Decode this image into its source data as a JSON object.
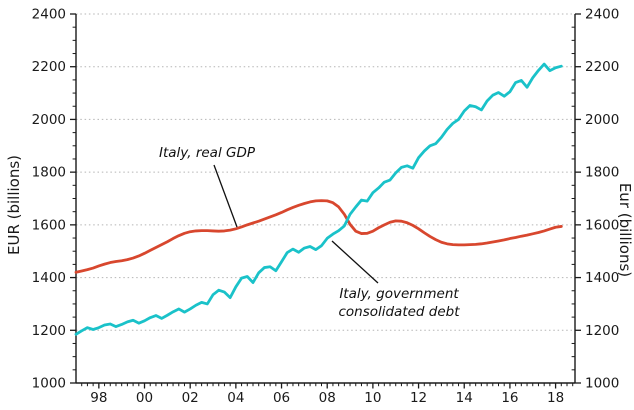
{
  "figure": {
    "left_axis_title": "EUR (billions)",
    "right_axis_title": "Eur (billions)"
  },
  "chart_data": {
    "type": "line",
    "title": "",
    "xlabel": "",
    "ylabel_left": "EUR (billions)",
    "ylabel_right": "Eur (billions)",
    "x_unit": "year, quarterly observations",
    "x_start": 1997.0,
    "x_step": 0.25,
    "xlim": [
      1997.0,
      2018.85
    ],
    "ylim": [
      1000,
      2400
    ],
    "grid": "horizontal, dotted, at major y ticks",
    "legend_position": "none (in-plot annotations)",
    "x_major_ticks": [
      1998,
      2000,
      2002,
      2004,
      2006,
      2008,
      2010,
      2012,
      2014,
      2016,
      2018
    ],
    "x_tick_labels": [
      "98",
      "00",
      "02",
      "04",
      "06",
      "08",
      "10",
      "12",
      "14",
      "16",
      "18"
    ],
    "y_major_ticks": [
      1000,
      1200,
      1400,
      1600,
      1800,
      2000,
      2200,
      2400
    ],
    "y_tick_labels": [
      "1000",
      "1200",
      "1400",
      "1600",
      "1800",
      "2000",
      "2200",
      "2400"
    ],
    "y_minor_tick_step": 50,
    "series": [
      {
        "name": "Italy, real GDP",
        "color": "#d8472e",
        "values": [
          1420,
          1425,
          1430,
          1436,
          1444,
          1451,
          1457,
          1461,
          1464,
          1468,
          1474,
          1482,
          1492,
          1503,
          1514,
          1525,
          1536,
          1548,
          1559,
          1568,
          1574,
          1577,
          1578,
          1578,
          1577,
          1576,
          1577,
          1580,
          1585,
          1592,
          1600,
          1607,
          1614,
          1622,
          1630,
          1638,
          1647,
          1657,
          1666,
          1674,
          1681,
          1687,
          1691,
          1692,
          1691,
          1684,
          1668,
          1640,
          1602,
          1576,
          1567,
          1568,
          1576,
          1589,
          1600,
          1610,
          1615,
          1614,
          1608,
          1598,
          1585,
          1570,
          1556,
          1544,
          1534,
          1528,
          1525,
          1524,
          1524,
          1525,
          1526,
          1528,
          1531,
          1535,
          1539,
          1543,
          1548,
          1552,
          1557,
          1561,
          1566,
          1571,
          1577,
          1584,
          1591,
          1594
        ]
      },
      {
        "name": "Italy, government consolidated debt",
        "color": "#1ac2c9",
        "values": [
          1185,
          1198,
          1210,
          1203,
          1210,
          1220,
          1224,
          1214,
          1222,
          1232,
          1238,
          1227,
          1236,
          1248,
          1256,
          1245,
          1257,
          1270,
          1281,
          1269,
          1281,
          1295,
          1306,
          1300,
          1335,
          1352,
          1345,
          1324,
          1365,
          1398,
          1404,
          1381,
          1418,
          1438,
          1441,
          1426,
          1460,
          1495,
          1508,
          1496,
          1512,
          1518,
          1506,
          1521,
          1549,
          1565,
          1578,
          1596,
          1640,
          1668,
          1694,
          1690,
          1722,
          1740,
          1762,
          1770,
          1797,
          1818,
          1824,
          1815,
          1855,
          1880,
          1900,
          1908,
          1932,
          1962,
          1985,
          2000,
          2032,
          2053,
          2048,
          2036,
          2070,
          2092,
          2102,
          2088,
          2105,
          2140,
          2148,
          2122,
          2158,
          2186,
          2210,
          2185,
          2196,
          2202
        ]
      }
    ],
    "annotations": [
      {
        "target_series": "Italy, real GDP",
        "lines": [
          "Italy, real GDP"
        ]
      },
      {
        "target_series": "Italy, government consolidated debt",
        "lines": [
          "Italy, government",
          "consolidated debt"
        ]
      }
    ]
  }
}
